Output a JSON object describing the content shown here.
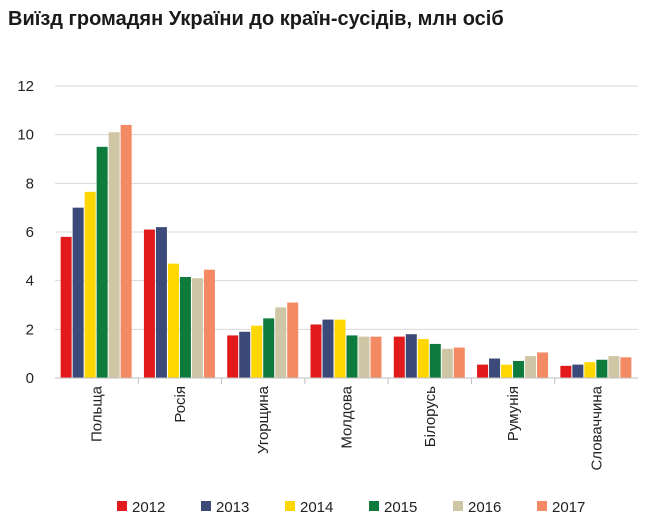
{
  "chart_data": {
    "type": "bar",
    "title": "Виїзд громадян України до країн-сусідів, млн осіб",
    "xlabel": "",
    "ylabel": "",
    "ylim": [
      0,
      12
    ],
    "yticks": [
      0,
      2,
      4,
      6,
      8,
      10,
      12
    ],
    "grid": true,
    "legend_position": "bottom",
    "categories": [
      "Польща",
      "Росія",
      "Угорщина",
      "Молдова",
      "Білорусь",
      "Румунія",
      "Словаччина"
    ],
    "series": [
      {
        "name": "2012",
        "color": "#e31a1c",
        "values": [
          5.8,
          6.1,
          1.75,
          2.2,
          1.7,
          0.55,
          0.5
        ]
      },
      {
        "name": "2013",
        "color": "#3b4a78",
        "values": [
          7.0,
          6.2,
          1.9,
          2.4,
          1.8,
          0.8,
          0.55
        ]
      },
      {
        "name": "2014",
        "color": "#ffd700",
        "values": [
          7.65,
          4.7,
          2.15,
          2.4,
          1.6,
          0.55,
          0.65
        ]
      },
      {
        "name": "2015",
        "color": "#0e7a3c",
        "values": [
          9.5,
          4.15,
          2.45,
          1.75,
          1.4,
          0.7,
          0.75
        ]
      },
      {
        "name": "2016",
        "color": "#cfc6a6",
        "values": [
          10.1,
          4.1,
          2.9,
          1.7,
          1.2,
          0.9,
          0.9
        ]
      },
      {
        "name": "2017",
        "color": "#f48a63",
        "values": [
          10.4,
          4.45,
          3.1,
          1.7,
          1.25,
          1.05,
          0.85
        ]
      }
    ]
  }
}
